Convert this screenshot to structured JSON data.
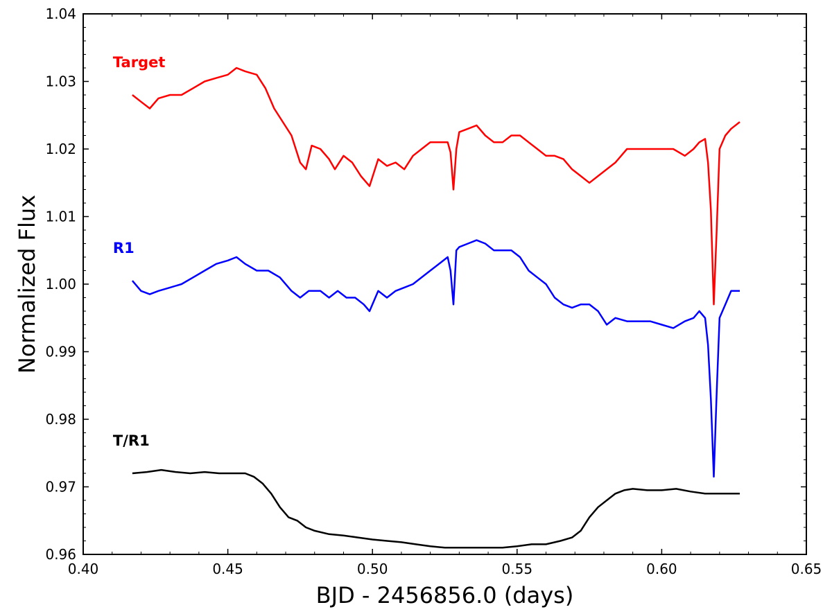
{
  "chart_data": {
    "type": "line",
    "xlabel": "BJD - 2456856.0 (days)",
    "ylabel": "Normalized Flux",
    "xlim": [
      0.4,
      0.65
    ],
    "ylim": [
      0.96,
      1.04
    ],
    "xticks": [
      "0.40",
      "0.45",
      "0.50",
      "0.55",
      "0.60",
      "0.65"
    ],
    "yticks": [
      "0.96",
      "0.97",
      "0.98",
      "0.99",
      "1.00",
      "1.01",
      "1.02",
      "1.03",
      "1.04"
    ],
    "grid": false,
    "series": [
      {
        "name": "Target",
        "color": "#ff0000",
        "x": [
          0.417,
          0.42,
          0.423,
          0.426,
          0.43,
          0.434,
          0.438,
          0.442,
          0.446,
          0.45,
          0.453,
          0.456,
          0.46,
          0.463,
          0.466,
          0.469,
          0.472,
          0.475,
          0.477,
          0.479,
          0.482,
          0.485,
          0.487,
          0.49,
          0.493,
          0.496,
          0.499,
          0.502,
          0.505,
          0.508,
          0.511,
          0.514,
          0.517,
          0.52,
          0.523,
          0.526,
          0.527,
          0.528,
          0.529,
          0.53,
          0.533,
          0.536,
          0.539,
          0.542,
          0.545,
          0.548,
          0.551,
          0.554,
          0.557,
          0.56,
          0.563,
          0.566,
          0.569,
          0.572,
          0.575,
          0.578,
          0.581,
          0.584,
          0.588,
          0.592,
          0.596,
          0.6,
          0.604,
          0.608,
          0.611,
          0.613,
          0.615,
          0.616,
          0.617,
          0.618,
          0.619,
          0.62,
          0.622,
          0.624,
          0.627
        ],
        "values": [
          1.028,
          1.027,
          1.026,
          1.0275,
          1.028,
          1.028,
          1.029,
          1.03,
          1.0305,
          1.031,
          1.032,
          1.0315,
          1.031,
          1.029,
          1.026,
          1.024,
          1.022,
          1.018,
          1.017,
          1.0205,
          1.02,
          1.0185,
          1.017,
          1.019,
          1.018,
          1.016,
          1.0145,
          1.0185,
          1.0175,
          1.018,
          1.017,
          1.019,
          1.02,
          1.021,
          1.021,
          1.021,
          1.0195,
          1.014,
          1.02,
          1.0225,
          1.023,
          1.0235,
          1.022,
          1.021,
          1.021,
          1.022,
          1.022,
          1.021,
          1.02,
          1.019,
          1.019,
          1.0185,
          1.017,
          1.016,
          1.015,
          1.016,
          1.017,
          1.018,
          1.02,
          1.02,
          1.02,
          1.02,
          1.02,
          1.019,
          1.02,
          1.021,
          1.0215,
          1.018,
          1.011,
          0.997,
          1.008,
          1.02,
          1.022,
          1.023,
          1.024
        ]
      },
      {
        "name": "R1",
        "color": "#0000ff",
        "x": [
          0.417,
          0.42,
          0.423,
          0.426,
          0.43,
          0.434,
          0.438,
          0.442,
          0.446,
          0.45,
          0.453,
          0.456,
          0.46,
          0.464,
          0.468,
          0.472,
          0.475,
          0.478,
          0.482,
          0.485,
          0.488,
          0.491,
          0.494,
          0.497,
          0.499,
          0.502,
          0.505,
          0.508,
          0.511,
          0.514,
          0.517,
          0.52,
          0.523,
          0.526,
          0.527,
          0.528,
          0.529,
          0.53,
          0.533,
          0.536,
          0.539,
          0.542,
          0.545,
          0.548,
          0.551,
          0.554,
          0.557,
          0.56,
          0.563,
          0.566,
          0.569,
          0.572,
          0.575,
          0.578,
          0.581,
          0.584,
          0.588,
          0.592,
          0.596,
          0.6,
          0.604,
          0.608,
          0.611,
          0.613,
          0.615,
          0.616,
          0.617,
          0.618,
          0.619,
          0.62,
          0.622,
          0.624,
          0.627
        ],
        "values": [
          1.0005,
          0.999,
          0.9985,
          0.999,
          0.9995,
          1.0,
          1.001,
          1.002,
          1.003,
          1.0035,
          1.004,
          1.003,
          1.002,
          1.002,
          1.001,
          0.999,
          0.998,
          0.999,
          0.999,
          0.998,
          0.999,
          0.998,
          0.998,
          0.997,
          0.996,
          0.999,
          0.998,
          0.999,
          0.9995,
          1.0,
          1.001,
          1.002,
          1.003,
          1.004,
          1.002,
          0.997,
          1.005,
          1.0055,
          1.006,
          1.0065,
          1.006,
          1.005,
          1.005,
          1.005,
          1.004,
          1.002,
          1.001,
          1.0,
          0.998,
          0.997,
          0.9965,
          0.997,
          0.997,
          0.996,
          0.994,
          0.995,
          0.9945,
          0.9945,
          0.9945,
          0.994,
          0.9935,
          0.9945,
          0.995,
          0.996,
          0.995,
          0.991,
          0.983,
          0.9715,
          0.984,
          0.995,
          0.997,
          0.999,
          0.999
        ]
      },
      {
        "name": "T/R1",
        "color": "#000000",
        "x": [
          0.417,
          0.422,
          0.427,
          0.432,
          0.437,
          0.442,
          0.447,
          0.452,
          0.456,
          0.459,
          0.462,
          0.465,
          0.468,
          0.471,
          0.474,
          0.477,
          0.48,
          0.485,
          0.49,
          0.495,
          0.5,
          0.505,
          0.51,
          0.515,
          0.52,
          0.525,
          0.53,
          0.535,
          0.54,
          0.545,
          0.55,
          0.555,
          0.56,
          0.565,
          0.569,
          0.572,
          0.575,
          0.578,
          0.581,
          0.584,
          0.587,
          0.59,
          0.595,
          0.6,
          0.605,
          0.61,
          0.615,
          0.62,
          0.627
        ],
        "values": [
          0.972,
          0.9722,
          0.9725,
          0.9722,
          0.972,
          0.9722,
          0.972,
          0.972,
          0.972,
          0.9715,
          0.9705,
          0.969,
          0.967,
          0.9655,
          0.965,
          0.964,
          0.9635,
          0.963,
          0.9628,
          0.9625,
          0.9622,
          0.962,
          0.9618,
          0.9615,
          0.9612,
          0.961,
          0.961,
          0.961,
          0.961,
          0.961,
          0.9612,
          0.9615,
          0.9615,
          0.962,
          0.9625,
          0.9635,
          0.9655,
          0.967,
          0.968,
          0.969,
          0.9695,
          0.9697,
          0.9695,
          0.9695,
          0.9697,
          0.9693,
          0.969,
          0.969,
          0.969
        ]
      }
    ]
  }
}
